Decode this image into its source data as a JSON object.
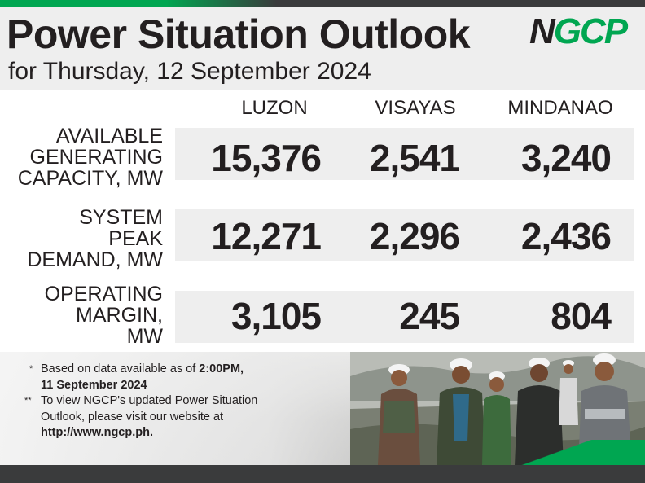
{
  "header": {
    "title": "Power Situation Outlook",
    "subtitle": "for Thursday, 12 September 2024",
    "logo_text": "NGCP"
  },
  "columns": [
    "LUZON",
    "VISAYAS",
    "MINDANAO"
  ],
  "rows": [
    {
      "label_lines": [
        "AVAILABLE",
        "GENERATING",
        "CAPACITY, MW"
      ],
      "values": [
        "15,376",
        "2,541",
        "3,240"
      ]
    },
    {
      "label_lines": [
        "SYSTEM",
        "PEAK",
        "DEMAND, MW"
      ],
      "values": [
        "12,271",
        "2,296",
        "2,436"
      ]
    },
    {
      "label_lines": [
        "OPERATING",
        "MARGIN,",
        "MW"
      ],
      "values": [
        "3,105",
        "245",
        "804"
      ]
    }
  ],
  "notes": {
    "note1_mark": "*",
    "note1_prefix": "Based on data available as of ",
    "note1_time": "2:00PM,",
    "note1_date": "11 September 2024",
    "note2_mark": "**",
    "note2_line1": "To view NGCP's updated Power Situation",
    "note2_line2": "Outlook, please visit our website at",
    "note2_url": "http://www.ngcp.ph."
  },
  "colors": {
    "brand_green": "#00a651",
    "dark": "#231f20",
    "band_gray": "#eeeeee",
    "bar_gray": "#3a3b3c"
  }
}
